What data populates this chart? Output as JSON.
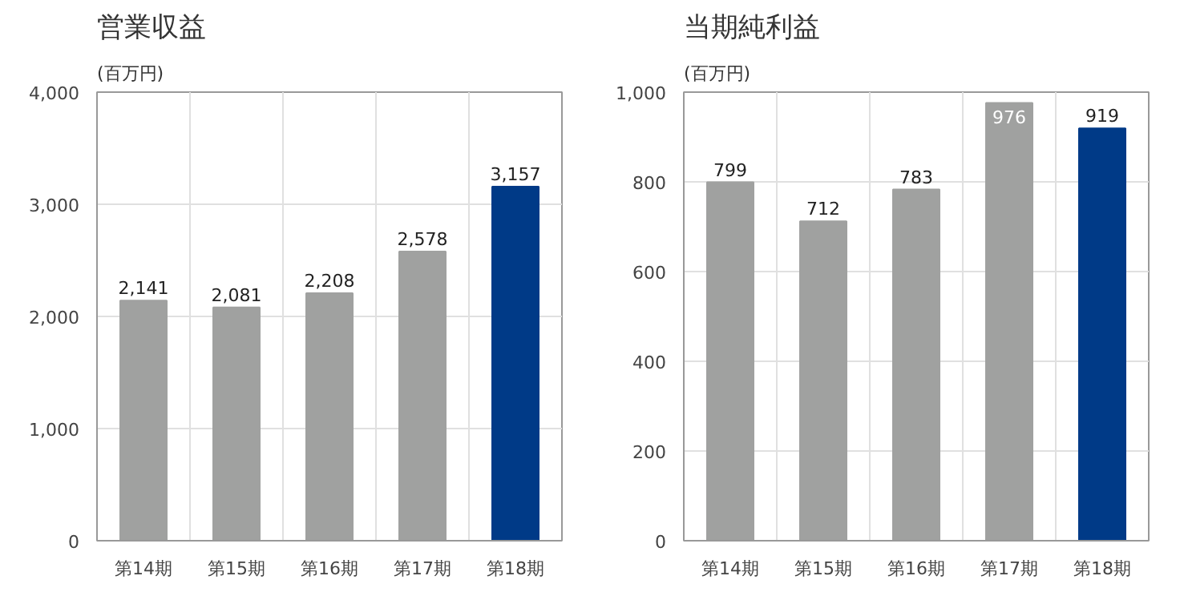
{
  "chart_data": [
    {
      "type": "bar",
      "title": "営業収益",
      "ylabel": "(百万円)",
      "categories": [
        "第14期",
        "第15期",
        "第16期",
        "第17期",
        "第18期"
      ],
      "values": [
        2141,
        2081,
        2208,
        2578,
        3157
      ],
      "colors": [
        "#a0a1a0",
        "#a0a1a0",
        "#a0a1a0",
        "#a0a1a0",
        "#003a87"
      ],
      "ylim": [
        0,
        4000
      ],
      "yticks": [
        0,
        {
          "value": 1000,
          "label": "1,000"
        },
        {
          "value": 2000,
          "label": "2,000"
        },
        {
          "value": 3000,
          "label": "3,000"
        },
        {
          "value": 4000,
          "label": "4,000"
        }
      ],
      "grid": true,
      "value_labels": [
        "2,141",
        "2,081",
        "2,208",
        "2,578",
        "3,157"
      ]
    },
    {
      "type": "bar",
      "title": "当期純利益",
      "ylabel": "(百万円)",
      "categories": [
        "第14期",
        "第15期",
        "第16期",
        "第17期",
        "第18期"
      ],
      "values": [
        799,
        712,
        783,
        976,
        919
      ],
      "colors": [
        "#a0a1a0",
        "#a0a1a0",
        "#a0a1a0",
        "#a0a1a0",
        "#003a87"
      ],
      "ylim": [
        0,
        1000
      ],
      "yticks": [
        0,
        200,
        400,
        600,
        800,
        {
          "value": 1000,
          "label": "1,000"
        }
      ],
      "grid": true,
      "data_labels": true
    }
  ]
}
